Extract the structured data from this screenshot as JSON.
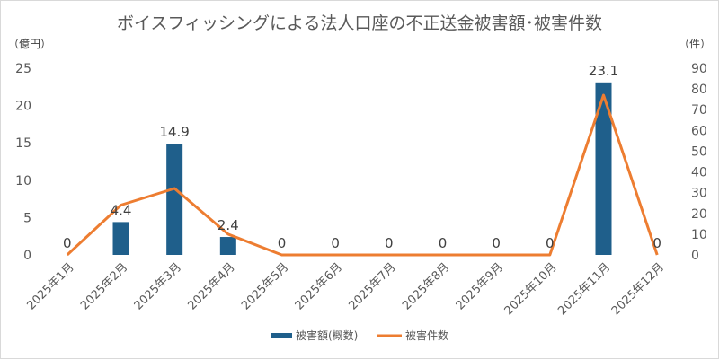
{
  "chart_data": {
    "type": "bar",
    "title": "ボイスフィッシングによる法人口座の不正送金被害額･被害件数",
    "y_left_unit": "（億円）",
    "y_right_unit": "（件）",
    "categories": [
      "2025年1月",
      "2025年2月",
      "2025年3月",
      "2025年4月",
      "2025年5月",
      "2025年6月",
      "2025年7月",
      "2025年8月",
      "2025年9月",
      "2025年10月",
      "2025年11月",
      "2025年12月"
    ],
    "ylim_left": [
      0,
      25
    ],
    "yticks_left": [
      0,
      5,
      10,
      15,
      20,
      25
    ],
    "ylim_right": [
      0,
      90
    ],
    "yticks_right": [
      0,
      10,
      20,
      30,
      40,
      50,
      60,
      70,
      80,
      90
    ],
    "grid": false,
    "legend_position": "bottom",
    "series": [
      {
        "name": "被害額(概数)",
        "type": "bar",
        "axis": "left",
        "color": "#1F5F8B",
        "values": [
          0,
          4.4,
          14.9,
          2.4,
          0,
          0,
          0,
          0,
          0,
          0,
          23.1,
          0
        ],
        "labels": [
          "0",
          "4.4",
          "14.9",
          "2.4",
          "0",
          "0",
          "0",
          "0",
          "0",
          "0",
          "23.1",
          "0"
        ]
      },
      {
        "name": "被害件数",
        "type": "line",
        "axis": "right",
        "color": "#ED7D31",
        "values": [
          0,
          24,
          32,
          10,
          0,
          0,
          0,
          0,
          0,
          0,
          77,
          0
        ]
      }
    ]
  }
}
